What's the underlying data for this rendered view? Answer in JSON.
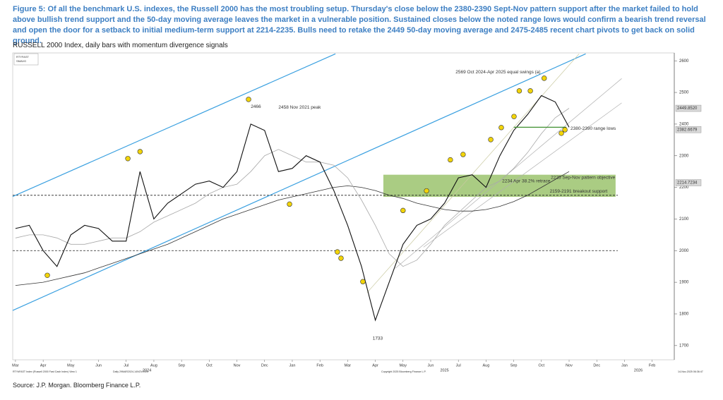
{
  "chart_data": {
    "type": "line",
    "title": "Figure 5: Of all the benchmark U.S. indexes, the Russell 2000 has the most troubling setup. Thursday's close below the 2380-2390 Sept-Nov pattern support after the market failed to hold above bullish trend support and the 50-day moving average leaves the market in a vulnerable position. Sustained closes below the noted range lows would confirm a bearish trend reversal and open the door for a setback to initial medium-term support at 2214-2235. Bulls need to retake the 2449 50-day moving average and 2475-2485 recent chart pivots to get back on solid ground.",
    "subtitle": "RUSSELL 2000 Index, daily bars with momentum divergence signals",
    "source": "Source: J.P. Morgan. Bloomberg Finance L.P.",
    "legend_box": [
      "RTYFAST",
      "SMAVG"
    ],
    "footer": [
      "RTY#FAST Index (Russell 2000 Fast Cash Index) View 1",
      "Daily 29MAR2024-14NOV2025",
      "Copyright 2025 Bloomberg Finance L.P.",
      "14-Nov-2025 06:36:47"
    ],
    "x": [
      0,
      0.5,
      1,
      1.5,
      2,
      2.5,
      3,
      3.5,
      4,
      4.5,
      5,
      5.5,
      6,
      6.5,
      7,
      7.5,
      8,
      8.5,
      9,
      9.5,
      10,
      10.5,
      11,
      11.5,
      12,
      12.5,
      13,
      13.5,
      14,
      14.5,
      15,
      15.5,
      16,
      16.5,
      17,
      17.5,
      18,
      18.5,
      19,
      19.5,
      20
    ],
    "series": [
      {
        "color": "#111111",
        "values": [
          2070,
          2080,
          2000,
          1950,
          2050,
          2080,
          2070,
          2030,
          2030,
          2250,
          2100,
          2150,
          2180,
          2210,
          2220,
          2200,
          2250,
          2400,
          2380,
          2250,
          2260,
          2300,
          2280,
          2190,
          2080,
          1950,
          1780,
          1900,
          2020,
          2080,
          2100,
          2150,
          2230,
          2240,
          2200,
          2300,
          2380,
          2430,
          2490,
          2470,
          2390
        ]
      },
      {
        "color": "#a8a8a8",
        "values": [
          2040,
          2050,
          2050,
          2040,
          2020,
          2020,
          2030,
          2040,
          2040,
          2060,
          2090,
          2110,
          2130,
          2150,
          2180,
          2200,
          2210,
          2250,
          2300,
          2320,
          2300,
          2280,
          2280,
          2270,
          2230,
          2160,
          2080,
          1990,
          1950,
          1970,
          2020,
          2080,
          2120,
          2160,
          2200,
          2220,
          2260,
          2310,
          2370,
          2420,
          2450
        ]
      },
      {
        "color": "#333333",
        "values": [
          1890,
          1895,
          1900,
          1910,
          1920,
          1930,
          1945,
          1960,
          1975,
          1990,
          2005,
          2020,
          2040,
          2060,
          2080,
          2100,
          2115,
          2130,
          2145,
          2160,
          2170,
          2180,
          2190,
          2200,
          2205,
          2200,
          2190,
          2175,
          2165,
          2150,
          2140,
          2130,
          2125,
          2125,
          2130,
          2140,
          2155,
          2175,
          2200,
          2225,
          2250
        ]
      }
    ],
    "xlim": [
      -0.1,
      23.8
    ],
    "ylim": [
      1655,
      2625
    ],
    "xticks": [
      {
        "value": 0,
        "label": "Mar"
      },
      {
        "value": 1,
        "label": "Apr"
      },
      {
        "value": 2,
        "label": "May"
      },
      {
        "value": 3,
        "label": "Jun"
      },
      {
        "value": 4,
        "label": "Jul"
      },
      {
        "value": 5,
        "label": "Aug"
      },
      {
        "value": 6,
        "label": "Sep"
      },
      {
        "value": 7,
        "label": "Oct"
      },
      {
        "value": 8,
        "label": "Nov"
      },
      {
        "value": 9,
        "label": "Dec"
      },
      {
        "value": 10,
        "label": "Jan"
      },
      {
        "value": 11,
        "label": "Feb"
      },
      {
        "value": 12,
        "label": "Mar"
      },
      {
        "value": 13,
        "label": "Apr"
      },
      {
        "value": 14,
        "label": "May"
      },
      {
        "value": 15,
        "label": "Jun"
      },
      {
        "value": 16,
        "label": "Jul"
      },
      {
        "value": 17,
        "label": "Aug"
      },
      {
        "value": 18,
        "label": "Sep"
      },
      {
        "value": 19,
        "label": "Oct"
      },
      {
        "value": 20,
        "label": "Nov"
      },
      {
        "value": 21,
        "label": "Dec"
      },
      {
        "value": 22,
        "label": "Jan"
      },
      {
        "value": 23,
        "label": "Feb"
      }
    ],
    "year_labels": [
      {
        "value": 4.75,
        "label": "2024"
      },
      {
        "value": 15.5,
        "label": "2025"
      },
      {
        "value": 22.5,
        "label": "2026"
      }
    ],
    "yticks": [
      1700,
      1800,
      1900,
      2000,
      2100,
      2200,
      2300,
      2400,
      2500,
      2600
    ],
    "price_tags": [
      {
        "value": 2449.852,
        "label": "2449.8520"
      },
      {
        "value": 2382.6679,
        "label": "2382.6679"
      },
      {
        "value": 2214.7234,
        "label": "2214.7234"
      }
    ],
    "grid": false,
    "trendlines": [
      {
        "color": "#3aa0e0",
        "x": [
          -0.1,
          11.56
        ],
        "y": [
          2171,
          2622
        ]
      },
      {
        "color": "#3aa0e0",
        "x": [
          -0.1,
          20.6
        ],
        "y": [
          1811,
          2622
        ]
      },
      {
        "color": "#c9c9a0",
        "x": [
          12.7,
          20.36
        ],
        "y": [
          1867,
          2622
        ]
      },
      {
        "color": "#b0b0b0",
        "x": [
          13.72,
          21.9
        ],
        "y": [
          1944,
          2544
        ]
      },
      {
        "color": "#b0b0b0",
        "x": [
          14.74,
          21.9
        ],
        "y": [
          2011,
          2467
        ]
      }
    ],
    "hlines": [
      {
        "value": 2000,
        "style": "dashed",
        "color": "#222222"
      },
      {
        "value": 2175,
        "style": "dashed",
        "color": "#222222"
      }
    ],
    "zone": {
      "x": [
        13.29,
        21.68
      ],
      "y": [
        2170,
        2240
      ],
      "color": "#8dbb5a"
    },
    "range_line": {
      "x": [
        18.0,
        19.9
      ],
      "y": 2390,
      "color": "#3f8f2f"
    },
    "value_notes": [
      {
        "x": 8.45,
        "value": 2466,
        "label": "2466"
      },
      {
        "x": 12.85,
        "value": 1733,
        "label": "1733"
      }
    ],
    "annotations": [
      {
        "text": "2458 Nov 2021 peak",
        "x": 9.5,
        "y": 2453
      },
      {
        "text": "2569 Oct 2024-Apr 2025 equal swings (a)",
        "x": 15.9,
        "y": 2564
      },
      {
        "text": "2380-2390 range lows",
        "x": 20.05,
        "y": 2386
      },
      {
        "text": "2225 Sep-Nov pattern objective",
        "x": 19.34,
        "y": 2231
      },
      {
        "text": "2234 Apr 38.2% retrace",
        "x": 17.58,
        "y": 2220
      },
      {
        "text": "2159-2191 breakout support",
        "x": 19.3,
        "y": 2187
      }
    ],
    "signals": {
      "color": "#f2d40a",
      "x": [
        1.15,
        4.06,
        4.5,
        8.42,
        9.9,
        11.63,
        11.76,
        12.55,
        14.0,
        14.85,
        15.71,
        16.17,
        17.17,
        17.55,
        18.01,
        18.2,
        18.6,
        19.1,
        19.72,
        19.85
      ],
      "y": [
        1922,
        2291,
        2313,
        2478,
        2147,
        1996,
        1976,
        1902,
        2127,
        2189,
        2287,
        2304,
        2351,
        2389,
        2424,
        2505,
        2505,
        2545,
        2371,
        2382
      ]
    }
  }
}
